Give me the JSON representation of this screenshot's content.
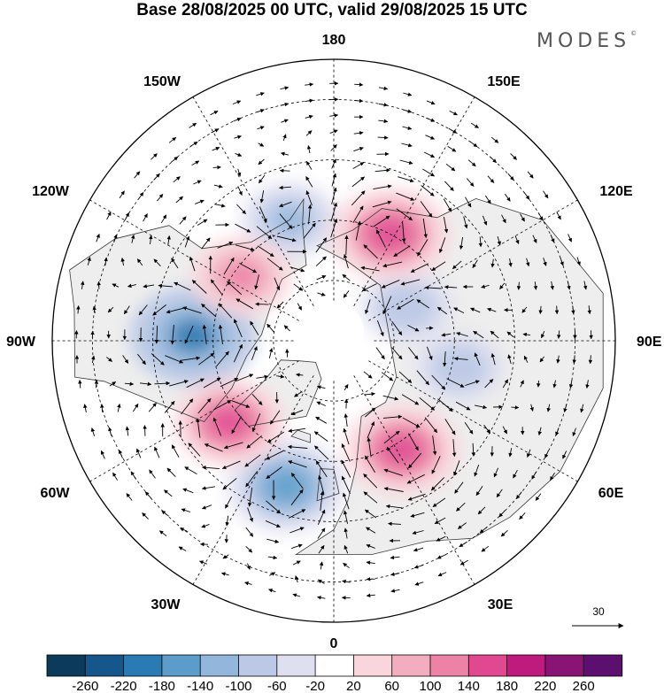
{
  "title": "Base 28/08/2025 00 UTC, valid 29/08/2025 15 UTC",
  "brand": "MODES",
  "brand_mark": "©",
  "longitude_labels": {
    "top": "180",
    "bottom": "0",
    "left": "90W",
    "right": "90E",
    "upper_left": "150W",
    "upper_right": "150E",
    "mid_upper_left": "120W",
    "mid_upper_right": "120E",
    "mid_lower_left": "60W",
    "mid_lower_right": "60E",
    "lower_left": "30W",
    "lower_right": "30E"
  },
  "reference_vector": {
    "label": "30"
  },
  "colorbar": {
    "ticks": [
      "-260",
      "-220",
      "-180",
      "-140",
      "-100",
      "-60",
      "-20",
      "20",
      "60",
      "100",
      "140",
      "180",
      "220",
      "260"
    ],
    "colors": [
      "#0b3a5b",
      "#15578a",
      "#2b7ab3",
      "#5b9ccb",
      "#93b6dc",
      "#bcc9e6",
      "#dedff0",
      "#ffffff",
      "#f9d6dc",
      "#f3adbe",
      "#ee82a6",
      "#e0498f",
      "#bd1c7e",
      "#8a1474",
      "#5b0f6e"
    ]
  },
  "anomaly_centers": [
    {
      "name": "low-hudson-bay",
      "lon": -92,
      "lat": 55,
      "value": -190
    },
    {
      "name": "low-north-atlantic",
      "lon": -18,
      "lat": 52,
      "value": -170
    },
    {
      "name": "low-gulf-of-alaska",
      "lon": -160,
      "lat": 58,
      "value": -110
    },
    {
      "name": "low-west-siberia",
      "lon": 78,
      "lat": 58,
      "value": -90
    },
    {
      "name": "low-east-siberia",
      "lon": 115,
      "lat": 70,
      "value": -100
    },
    {
      "name": "high-labrador",
      "lon": -52,
      "lat": 57,
      "value": 150
    },
    {
      "name": "high-scandinavia-russia",
      "lon": 32,
      "lat": 58,
      "value": 160
    },
    {
      "name": "high-chukotka",
      "lon": 152,
      "lat": 60,
      "value": 170
    },
    {
      "name": "high-canada-west",
      "lon": -125,
      "lat": 62,
      "value": 120
    }
  ]
}
